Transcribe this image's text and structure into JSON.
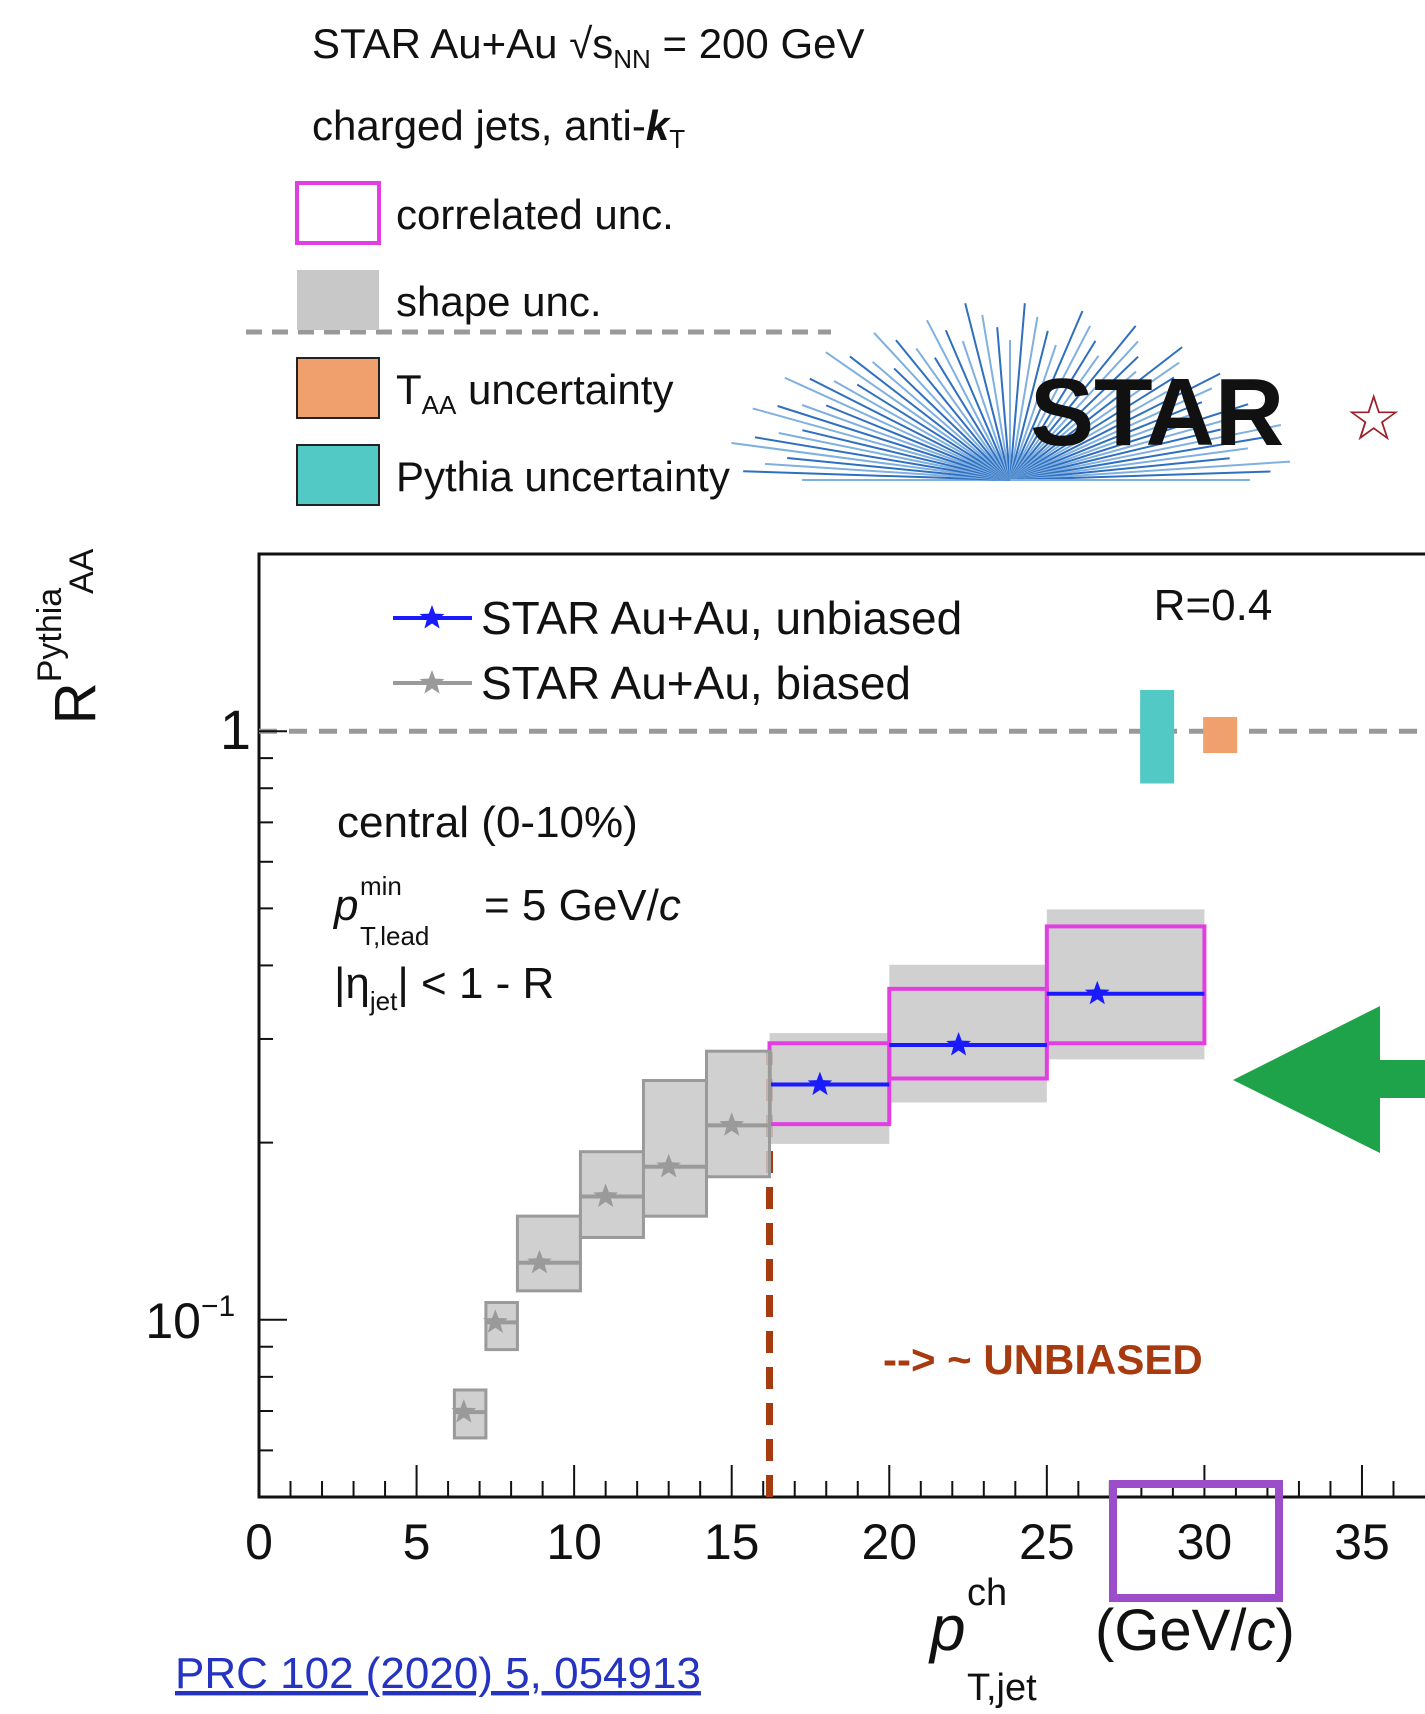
{
  "chart_data": {
    "type": "step-errorbar",
    "title": [
      "STAR Au+Au ",
      "√s",
      "NN",
      " = 200 GeV"
    ],
    "subtitle": [
      "charged jets, anti-",
      "k",
      "T"
    ],
    "uncertainty_legend": [
      {
        "name": "correlated unc.",
        "color": "#e23fe2"
      },
      {
        "name": "shape unc.",
        "color": "#c8c8c8"
      },
      {
        "name": [
          "T",
          "AA",
          " uncertainty"
        ],
        "color": "#f0a06c"
      },
      {
        "name": "Pythia uncertainty",
        "color": "#52c9c4"
      }
    ],
    "logo": [
      "STAR",
      "☆"
    ],
    "y_label": [
      "R",
      "Pythia",
      "AA"
    ],
    "x_label": [
      "p",
      "ch",
      "T,jet",
      "(GeV/",
      "c",
      ")"
    ],
    "annotations": {
      "radius": "R=0.4",
      "centrality": "central (0-10%)",
      "lead": [
        "p",
        "min",
        "T,lead",
        "= 5 GeV/",
        "c"
      ],
      "eta": [
        "|η",
        "jet",
        "| < 1 - R"
      ],
      "unbiased": "--> ~ UNBIASED"
    },
    "reference": "PRC 102 (2020) 5, 054913",
    "threshold_x": 16.2,
    "unity": 1,
    "xlim": [
      0,
      37
    ],
    "xticks": [
      0,
      5,
      10,
      15,
      20,
      25,
      30,
      35
    ],
    "xminorticks": [
      1,
      2,
      3,
      4,
      6,
      7,
      8,
      9,
      11,
      12,
      13,
      14,
      16,
      17,
      18,
      19,
      21,
      22,
      23,
      24,
      26,
      27,
      28,
      29,
      31,
      32,
      33,
      34,
      36
    ],
    "ylim": [
      0.05,
      2
    ],
    "yscale": "log",
    "yticks": [
      {
        "value": 0.1,
        "label": "10",
        "exponent": "−1"
      },
      1
    ],
    "yminorticks": [
      0.06,
      0.07,
      0.08,
      0.09,
      0.2,
      0.3,
      0.4,
      0.5,
      0.6,
      0.7,
      0.8,
      0.9
    ],
    "series": [
      {
        "name": "STAR Au+Au, unbiased",
        "color": "#1a1aff",
        "x": [
          17.8,
          22.2,
          26.6
        ],
        "values": [
          0.251,
          0.293,
          0.358
        ],
        "x_low": [
          16.2,
          20,
          25
        ],
        "x_high": [
          20,
          25,
          30
        ],
        "shape_low": [
          0.199,
          0.234,
          0.277
        ],
        "shape_high": [
          0.307,
          0.401,
          0.498
        ],
        "corr_low": [
          0.215,
          0.257,
          0.295
        ],
        "corr_high": [
          0.295,
          0.365,
          0.466
        ]
      },
      {
        "name": "STAR Au+Au, biased",
        "color": "#9a9a9a",
        "x": [
          6.5,
          7.5,
          8.9,
          11,
          13,
          15
        ],
        "values": [
          0.0697,
          0.099,
          0.125,
          0.162,
          0.182,
          0.214
        ],
        "x_low": [
          6.2,
          7.2,
          8.2,
          10.2,
          12.2,
          14.2
        ],
        "x_high": [
          7.2,
          8.2,
          10.2,
          12.2,
          14.2,
          16.2
        ],
        "shape_low": [
          0.063,
          0.089,
          0.112,
          0.138,
          0.15,
          0.175
        ],
        "shape_high": [
          0.076,
          0.107,
          0.15,
          0.193,
          0.255,
          0.286
        ]
      }
    ],
    "pythia_unc": {
      "x": 28.5,
      "low": 0.815,
      "high": 1.175
    },
    "taa_unc": {
      "x": 30.5,
      "low": 0.918,
      "high": 1.057
    }
  }
}
